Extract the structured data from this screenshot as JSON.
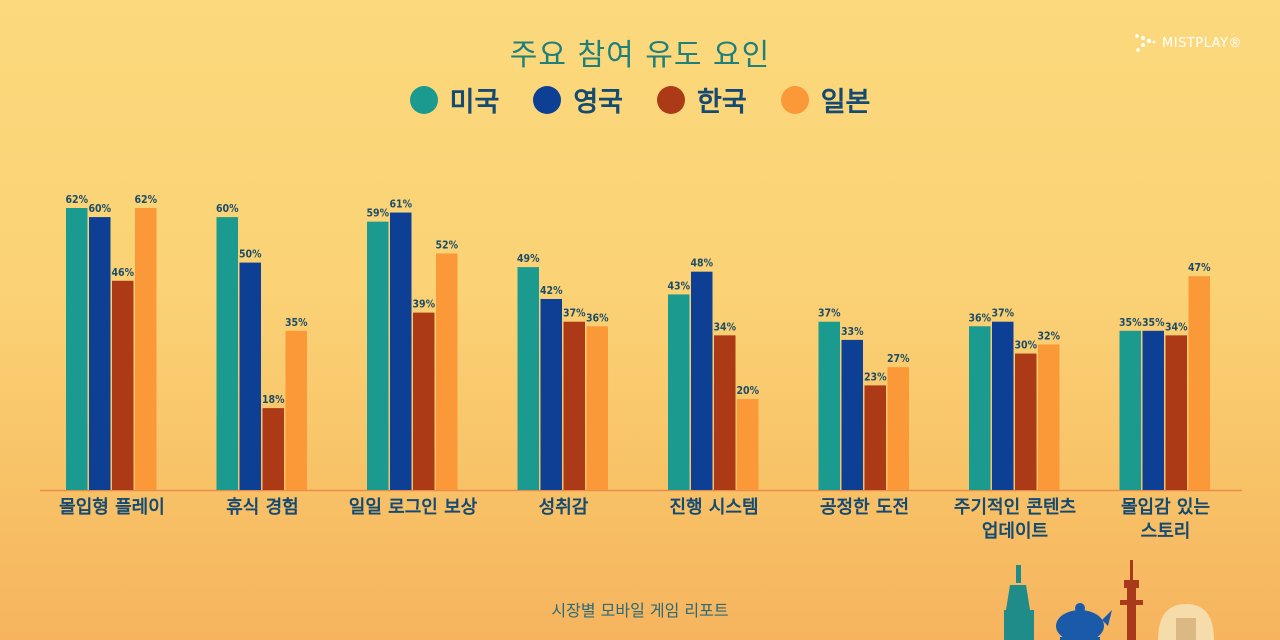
{
  "chart_data": {
    "type": "bar",
    "title": "주요 참여 유도 요인",
    "categories": [
      "몰입형 플레이",
      "휴식 경험",
      "일일 로그인 보상",
      "성취감",
      "진행 시스템",
      "공정한 도전",
      "주기적인 콘텐츠\n업데이트",
      "몰입감 있는\n스토리"
    ],
    "series": [
      {
        "name": "미국",
        "color": "#1b9a8f",
        "values": [
          62,
          60,
          59,
          49,
          43,
          37,
          36,
          35
        ]
      },
      {
        "name": "영국",
        "color": "#0d3f95",
        "values": [
          60,
          50,
          61,
          42,
          48,
          33,
          37,
          35
        ]
      },
      {
        "name": "한국",
        "color": "#ad3a17",
        "values": [
          46,
          18,
          39,
          37,
          34,
          23,
          30,
          34
        ]
      },
      {
        "name": "일본",
        "color": "#fb9938",
        "values": [
          62,
          35,
          52,
          36,
          20,
          27,
          32,
          47
        ]
      }
    ],
    "value_suffix": "%",
    "ylim": [
      0,
      62
    ],
    "grid": false,
    "legend_position": "top-center"
  },
  "brand": {
    "name": "MISTPLAY®"
  },
  "footer": {
    "text": "시장별 모바일 게임 리포트"
  }
}
